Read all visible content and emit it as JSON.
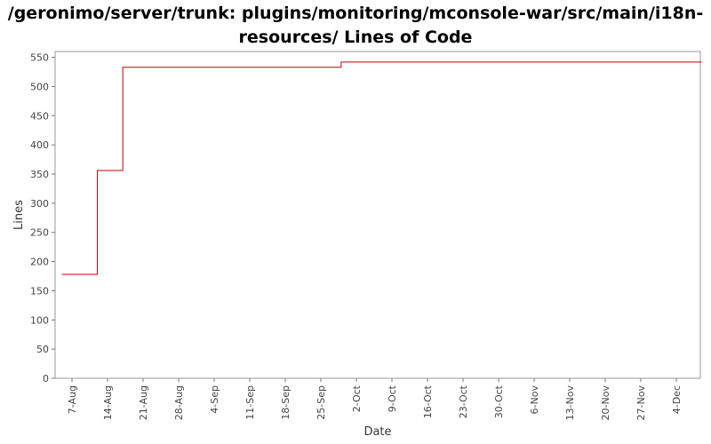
{
  "chart_data": {
    "type": "line",
    "step": true,
    "title_lines": [
      "/geronimo/server/trunk: plugins/monitoring/mconsole-war/src/main/i18n-",
      "resources/ Lines of Code"
    ],
    "xlabel": "Date",
    "ylabel": "Lines",
    "ylim": [
      0,
      560
    ],
    "yticks": [
      0,
      50,
      100,
      150,
      200,
      250,
      300,
      350,
      400,
      450,
      500,
      550
    ],
    "xticks": [
      "7-Aug",
      "14-Aug",
      "21-Aug",
      "28-Aug",
      "4-Sep",
      "11-Sep",
      "18-Sep",
      "25-Sep",
      "2-Oct",
      "9-Oct",
      "16-Oct",
      "23-Oct",
      "30-Oct",
      "6-Nov",
      "13-Nov",
      "20-Nov",
      "27-Nov",
      "4-Dec"
    ],
    "grid": false,
    "line_color": "#c00000",
    "series": [
      {
        "points": [
          {
            "x": "5-Aug",
            "y": 178
          },
          {
            "x": "12-Aug",
            "y": 356
          },
          {
            "x": "17-Aug",
            "y": 533
          },
          {
            "x": "29-Sep",
            "y": 542
          },
          {
            "x": "9-Dec",
            "y": 542
          }
        ]
      }
    ]
  }
}
